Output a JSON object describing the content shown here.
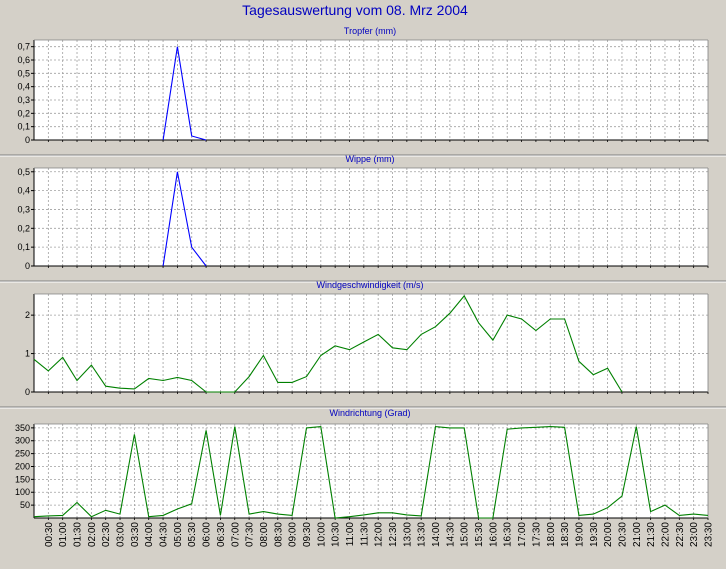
{
  "title": "Tagesauswertung vom 08. Mrz 2004",
  "colors": {
    "background": "#d4d0c8",
    "plot_background": "#ffffff",
    "title_text": "#0000c0",
    "grid": "#a0a0a0",
    "series_blue": "#0000ff",
    "series_green": "#008000"
  },
  "x_tick_labels": [
    "00:30",
    "01:00",
    "01:30",
    "02:00",
    "02:30",
    "03:00",
    "03:30",
    "04:00",
    "04:30",
    "05:00",
    "05:30",
    "06:00",
    "06:30",
    "07:00",
    "07:30",
    "08:00",
    "08:30",
    "09:00",
    "09:30",
    "10:00",
    "10:30",
    "11:00",
    "11:30",
    "12:00",
    "12:30",
    "13:00",
    "13:30",
    "14:00",
    "14:30",
    "15:00",
    "15:30",
    "16:00",
    "16:30",
    "17:00",
    "17:30",
    "18:00",
    "18:30",
    "19:00",
    "19:30",
    "20:00",
    "20:30",
    "21:00",
    "21:30",
    "22:00",
    "22:30",
    "23:00",
    "23:30"
  ],
  "chart_data": [
    {
      "type": "line",
      "title": "Tropfer (mm)",
      "ylim": [
        0,
        0.75
      ],
      "y_ticks": [
        "0",
        "0,1",
        "0,2",
        "0,3",
        "0,4",
        "0,5",
        "0,6",
        "0,7"
      ],
      "y_tick_values": [
        0,
        0.1,
        0.2,
        0.3,
        0.4,
        0.5,
        0.6,
        0.7
      ],
      "grid": true,
      "series": [
        {
          "color": "#0000ff",
          "x": [
            4.5,
            5.0,
            5.5,
            6.0
          ],
          "values": [
            0,
            0.7,
            0.03,
            0
          ]
        }
      ]
    },
    {
      "type": "line",
      "title": "Wippe (mm)",
      "ylim": [
        0,
        0.52
      ],
      "y_ticks": [
        "0",
        "0,1",
        "0,2",
        "0,3",
        "0,4",
        "0,5"
      ],
      "y_tick_values": [
        0,
        0.1,
        0.2,
        0.3,
        0.4,
        0.5
      ],
      "grid": true,
      "series": [
        {
          "color": "#0000ff",
          "x": [
            4.5,
            5.0,
            5.5,
            6.0
          ],
          "values": [
            0,
            0.5,
            0.1,
            0
          ]
        }
      ]
    },
    {
      "type": "line",
      "title": "Windgeschwindigkeit (m/s)",
      "ylim": [
        0,
        2.55
      ],
      "y_ticks": [
        "0",
        "1",
        "2"
      ],
      "y_tick_values": [
        0,
        1,
        2
      ],
      "grid": true,
      "series": [
        {
          "color": "#008000",
          "x": [
            0.0,
            0.5,
            1.0,
            1.5,
            2.0,
            2.5,
            3.0,
            3.5,
            4.0,
            4.5,
            5.0,
            5.5,
            6.0,
            6.5,
            7.0,
            7.5,
            8.0,
            8.5,
            9.0,
            9.5,
            10.0,
            10.5,
            11.0,
            11.5,
            12.0,
            12.5,
            13.0,
            13.5,
            14.0,
            14.5,
            15.0,
            15.5,
            16.0,
            16.5,
            17.0,
            17.5,
            18.0,
            18.5,
            19.0,
            19.5,
            20.0,
            20.5
          ],
          "values": [
            0.85,
            0.55,
            0.9,
            0.3,
            0.7,
            0.15,
            0.1,
            0.08,
            0.35,
            0.3,
            0.38,
            0.3,
            0.0,
            0.0,
            0.0,
            0.4,
            0.95,
            0.25,
            0.25,
            0.4,
            0.95,
            1.2,
            1.1,
            1.3,
            1.5,
            1.15,
            1.1,
            1.5,
            1.7,
            2.05,
            2.5,
            1.8,
            1.35,
            2.0,
            1.9,
            1.6,
            1.9,
            1.9,
            0.8,
            0.45,
            0.62,
            0.0
          ]
        }
      ]
    },
    {
      "type": "line",
      "title": "Windrichtung (Grad)",
      "ylim": [
        0,
        365
      ],
      "y_ticks": [
        "50",
        "100",
        "150",
        "200",
        "250",
        "300",
        "350"
      ],
      "y_tick_values": [
        50,
        100,
        150,
        200,
        250,
        300,
        350
      ],
      "grid": true,
      "series": [
        {
          "color": "#008000",
          "x": [
            0.0,
            0.5,
            1.0,
            1.5,
            2.0,
            2.5,
            3.0,
            3.5,
            4.0,
            4.5,
            5.0,
            5.5,
            6.0,
            6.5,
            7.0,
            7.5,
            8.0,
            8.5,
            9.0,
            9.5,
            10.0,
            10.5,
            11.0,
            11.5,
            12.0,
            12.5,
            13.0,
            13.5,
            14.0,
            14.5,
            15.0,
            15.5,
            16.0,
            16.5,
            17.0,
            17.5,
            18.0,
            18.5,
            19.0,
            19.5,
            20.0,
            20.5,
            21.0,
            21.5,
            22.0,
            22.5,
            23.0,
            23.5
          ],
          "values": [
            5,
            8,
            10,
            60,
            5,
            30,
            15,
            325,
            5,
            10,
            35,
            55,
            340,
            10,
            355,
            15,
            25,
            15,
            10,
            350,
            355,
            0,
            5,
            12,
            20,
            20,
            12,
            8,
            355,
            350,
            350,
            0,
            0,
            345,
            350,
            352,
            355,
            352,
            10,
            15,
            40,
            85,
            355,
            25,
            50,
            10,
            15,
            10
          ]
        }
      ]
    }
  ]
}
